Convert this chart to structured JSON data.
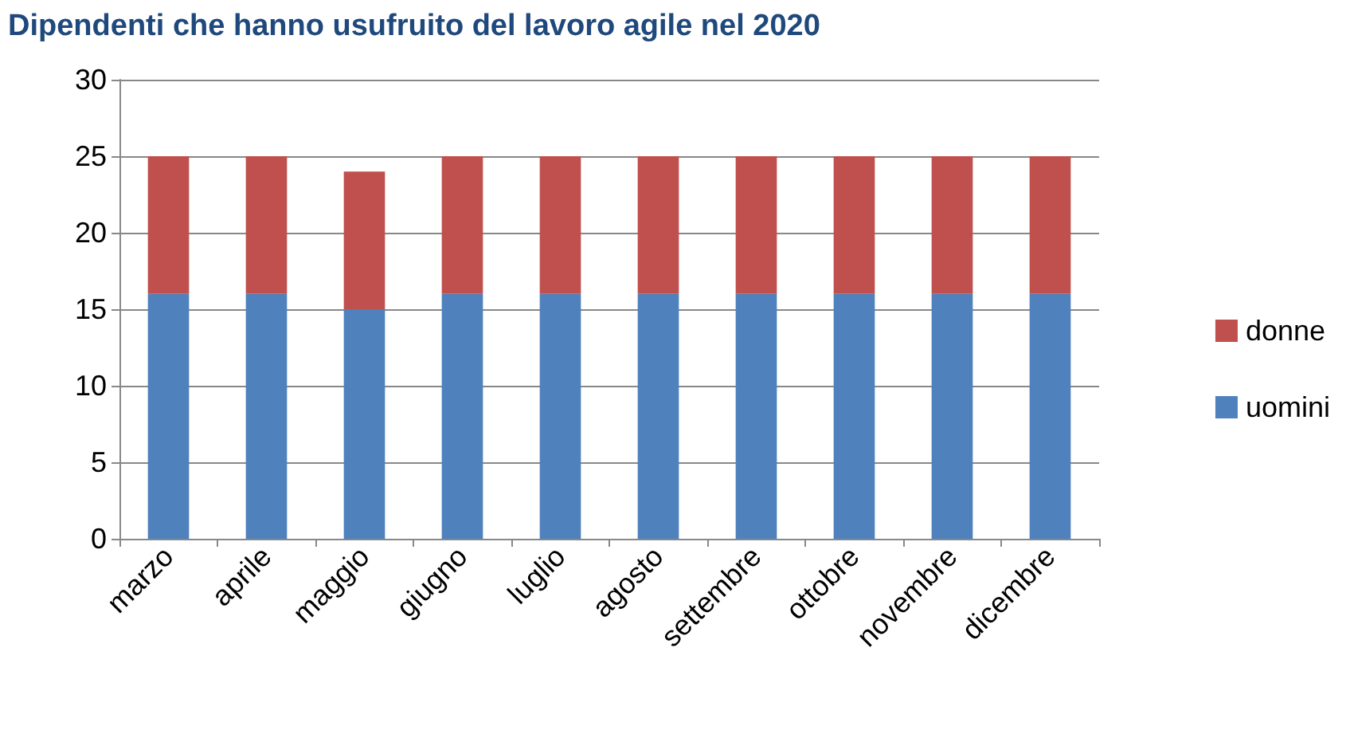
{
  "chart_data": {
    "type": "bar",
    "title": "Dipendenti che hanno usufruito del lavoro agile nel 2020",
    "categories": [
      "marzo",
      "aprile",
      "maggio",
      "giugno",
      "luglio",
      "agosto",
      "settembre",
      "ottobre",
      "novembre",
      "dicembre"
    ],
    "series": [
      {
        "name": "uomini",
        "color": "#4f81bd",
        "values": [
          16,
          16,
          15,
          16,
          16,
          16,
          16,
          16,
          16,
          16
        ]
      },
      {
        "name": "donne",
        "color": "#c0504d",
        "values": [
          9,
          9,
          9,
          9,
          9,
          9,
          9,
          9,
          9,
          9
        ]
      }
    ],
    "stacked": true,
    "ylim": [
      0,
      30
    ],
    "yticks": [
      0,
      5,
      10,
      15,
      20,
      25,
      30
    ],
    "grid": "y",
    "legend": "right"
  }
}
